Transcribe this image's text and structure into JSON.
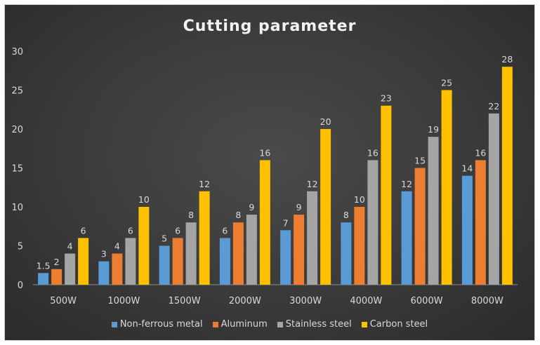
{
  "chart_data": {
    "type": "bar",
    "title": "Cutting parameter",
    "categories": [
      "500W",
      "1000W",
      "1500W",
      "2000W",
      "3000W",
      "4000W",
      "6000W",
      "8000W"
    ],
    "series": [
      {
        "name": "Non-ferrous metal",
        "color": "#5b9bd5",
        "values": [
          1.5,
          3,
          5,
          6,
          7,
          8,
          12,
          14
        ]
      },
      {
        "name": "Aluminum",
        "color": "#ed7d31",
        "values": [
          2,
          4,
          6,
          8,
          9,
          10,
          15,
          16
        ]
      },
      {
        "name": "Stainless steel",
        "color": "#a5a5a5",
        "values": [
          4,
          6,
          8,
          9,
          12,
          16,
          19,
          22
        ]
      },
      {
        "name": "Carbon steel",
        "color": "#ffc000",
        "values": [
          6,
          10,
          12,
          16,
          20,
          23,
          25,
          28
        ]
      }
    ],
    "ylim": [
      0,
      30
    ],
    "yticks": [
      0,
      5,
      10,
      15,
      20,
      25,
      30
    ],
    "grid": false,
    "legend_position": "bottom",
    "xlabel": "",
    "ylabel": ""
  }
}
